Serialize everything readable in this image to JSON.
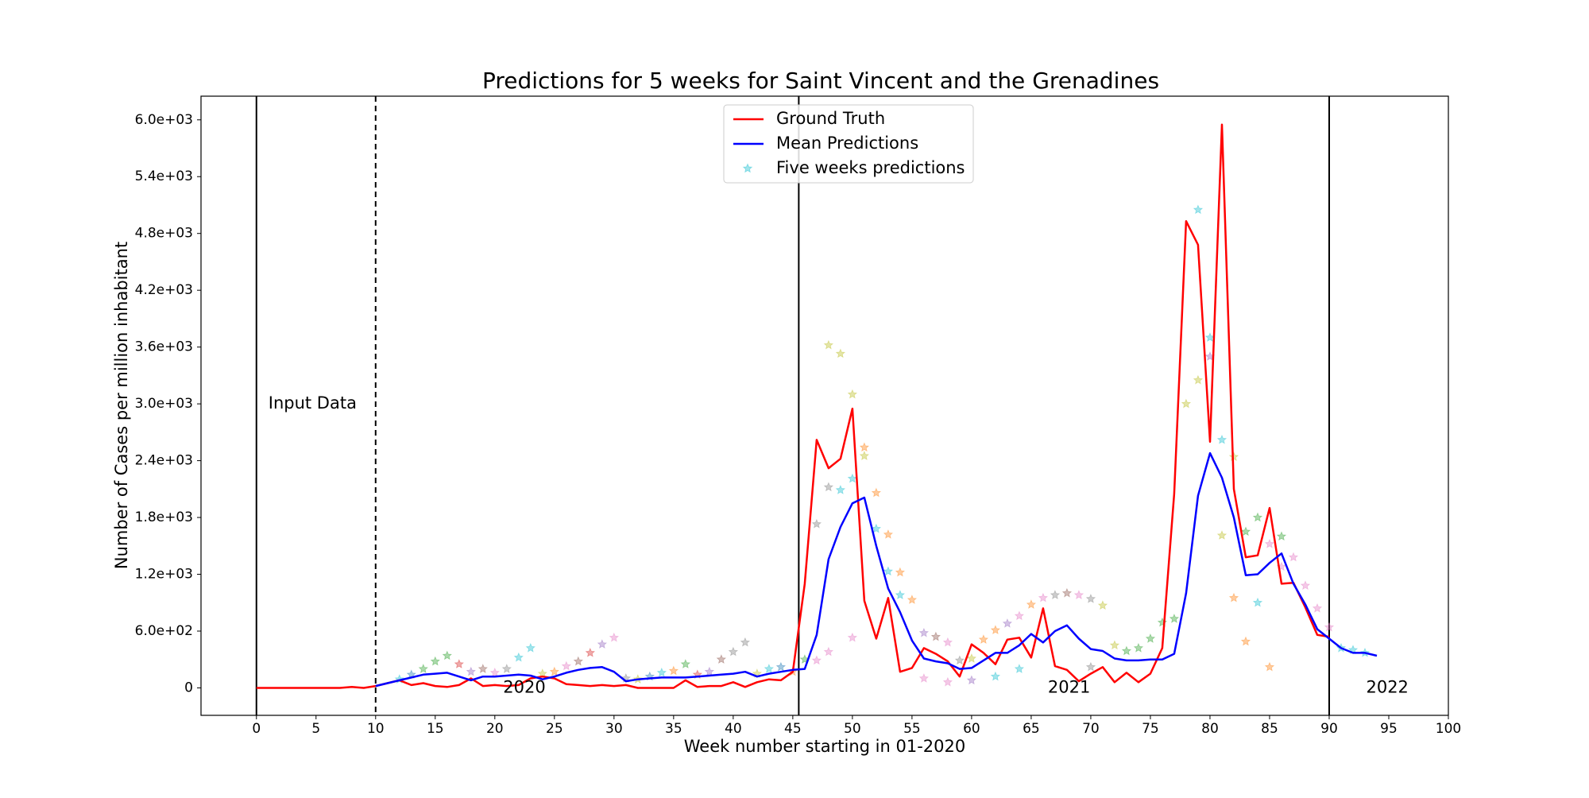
{
  "chart_data": {
    "type": "line",
    "title": "Predictions for 5 weeks for Saint Vincent and the Grenadines",
    "x_label": "Week number starting in 01-2020",
    "y_label": "Number of Cases per million inhabitant",
    "xlim": [
      -4.65,
      100
    ],
    "ylim": [
      -290,
      6250
    ],
    "xticks": [
      0,
      5,
      10,
      15,
      20,
      25,
      30,
      35,
      40,
      45,
      50,
      55,
      60,
      65,
      70,
      75,
      80,
      85,
      90,
      95,
      100
    ],
    "yticks": [
      0,
      {
        "value": 600,
        "label": "6.0e+02"
      },
      {
        "value": 1200,
        "label": "1.2e+03"
      },
      {
        "value": 1800,
        "label": "1.8e+03"
      },
      {
        "value": 2400,
        "label": "2.4e+03"
      },
      {
        "value": 3000,
        "label": "3.0e+03"
      },
      {
        "value": 3600,
        "label": "3.6e+03"
      },
      {
        "value": 4200,
        "label": "4.2e+03"
      },
      {
        "value": 4800,
        "label": "4.8e+03"
      },
      {
        "value": 5400,
        "label": "5.4e+03"
      },
      {
        "value": 6000,
        "label": "6.0e+03"
      }
    ],
    "grid": false,
    "legend": "upper center",
    "vlines": [
      {
        "x": 0,
        "style": "solid"
      },
      {
        "x": 10,
        "style": "dashed"
      },
      {
        "x": 45.5,
        "style": "solid"
      },
      {
        "x": 90,
        "style": "solid"
      }
    ],
    "annotations": [
      {
        "text": "Input Data",
        "x": 1,
        "y": 3000
      },
      {
        "text": "2020",
        "x": 20.7,
        "y": 0
      },
      {
        "text": "2021",
        "x": 66.4,
        "y": 0
      },
      {
        "text": "2022",
        "x": 93.1,
        "y": 0
      }
    ],
    "series": [
      {
        "name": "Ground Truth",
        "type": "line",
        "color": "#ff0000",
        "x": [
          0,
          1,
          2,
          3,
          4,
          5,
          6,
          7,
          8,
          9,
          10,
          11,
          12,
          13,
          14,
          15,
          16,
          17,
          18,
          19,
          20,
          21,
          22,
          23,
          24,
          25,
          26,
          27,
          28,
          29,
          30,
          31,
          32,
          33,
          34,
          35,
          36,
          37,
          38,
          39,
          40,
          41,
          42,
          43,
          44,
          45,
          46,
          47,
          48,
          49,
          50,
          51,
          52,
          53,
          54,
          55,
          56,
          57,
          58,
          59,
          60,
          61,
          62,
          63,
          64,
          65,
          66,
          67,
          68,
          69,
          70,
          71,
          72,
          73,
          74,
          75,
          76,
          77,
          78,
          79,
          80,
          81,
          82,
          83,
          84,
          85,
          86,
          87,
          88,
          89,
          90
        ],
        "values": [
          0,
          0,
          0,
          0,
          0,
          0,
          0,
          0,
          10,
          0,
          20,
          50,
          80,
          30,
          50,
          20,
          10,
          30,
          100,
          20,
          30,
          20,
          30,
          100,
          120,
          100,
          40,
          30,
          20,
          30,
          20,
          30,
          0,
          0,
          0,
          0,
          80,
          10,
          20,
          20,
          60,
          10,
          60,
          90,
          80,
          170,
          1100,
          2620,
          2320,
          2420,
          2950,
          920,
          520,
          950,
          170,
          210,
          420,
          360,
          280,
          120,
          460,
          370,
          250,
          510,
          530,
          320,
          840,
          230,
          190,
          70,
          150,
          220,
          60,
          160,
          60,
          150,
          420,
          2050,
          4930,
          4680,
          2600,
          5950,
          2100,
          1380,
          1400,
          1900,
          1100,
          1110,
          850,
          560,
          540
        ]
      },
      {
        "name": "Mean Predictions",
        "type": "line",
        "color": "#0000ff",
        "x": [
          10,
          11,
          12,
          13,
          14,
          15,
          16,
          17,
          18,
          19,
          20,
          21,
          22,
          23,
          24,
          25,
          26,
          27,
          28,
          29,
          30,
          31,
          32,
          33,
          34,
          35,
          36,
          37,
          38,
          39,
          40,
          41,
          42,
          43,
          44,
          45,
          46,
          47,
          48,
          49,
          50,
          51,
          52,
          53,
          54,
          55,
          56,
          57,
          58,
          59,
          60,
          61,
          62,
          63,
          64,
          65,
          66,
          67,
          68,
          69,
          70,
          71,
          72,
          73,
          74,
          75,
          76,
          77,
          78,
          79,
          80,
          81,
          82,
          83,
          84,
          85,
          86,
          87,
          88,
          89,
          90,
          91,
          92,
          93,
          94
        ],
        "values": [
          20,
          50,
          80,
          110,
          140,
          150,
          160,
          120,
          80,
          120,
          120,
          130,
          140,
          130,
          90,
          120,
          160,
          190,
          210,
          220,
          170,
          70,
          90,
          100,
          110,
          110,
          110,
          120,
          130,
          140,
          150,
          170,
          120,
          150,
          170,
          190,
          200,
          560,
          1360,
          1700,
          1950,
          2010,
          1500,
          1050,
          800,
          500,
          310,
          280,
          260,
          200,
          210,
          290,
          370,
          370,
          450,
          570,
          480,
          600,
          660,
          520,
          410,
          390,
          310,
          290,
          290,
          300,
          300,
          360,
          1000,
          2030,
          2480,
          2220,
          1800,
          1190,
          1200,
          1320,
          1420,
          1100,
          880,
          620,
          520,
          420,
          370,
          370,
          340
        ]
      },
      {
        "name": "Five weeks predictions",
        "type": "scatter",
        "color": "#17becf",
        "x": [
          12,
          13,
          14,
          15,
          16,
          17,
          18,
          19,
          20,
          21,
          22,
          23,
          24,
          25,
          26,
          27,
          28,
          29,
          30,
          31,
          32,
          33,
          34,
          35,
          36,
          37,
          38,
          39,
          40,
          41,
          42,
          43,
          44,
          45,
          46,
          47,
          48,
          48,
          49,
          49,
          50,
          50,
          51,
          51,
          52,
          52,
          53,
          53,
          54,
          54,
          55,
          56,
          57,
          58,
          59,
          60,
          61,
          62,
          63,
          64,
          65,
          66,
          67,
          68,
          69,
          70,
          71,
          72,
          73,
          74,
          75,
          76,
          77,
          78,
          79,
          79,
          80,
          80,
          81,
          81,
          82,
          82,
          83,
          83,
          84,
          84,
          85,
          85,
          86,
          86,
          87,
          88,
          89,
          90,
          91,
          92,
          93,
          47,
          48,
          50,
          56,
          58,
          60,
          62,
          64,
          70
        ],
        "values": [
          90,
          140,
          200,
          280,
          340,
          250,
          170,
          200,
          160,
          200,
          320,
          420,
          150,
          170,
          230,
          280,
          370,
          460,
          530,
          100,
          90,
          120,
          160,
          180,
          250,
          140,
          170,
          300,
          380,
          480,
          150,
          200,
          220,
          170,
          300,
          1730,
          2120,
          3620,
          3530,
          2090,
          3100,
          2210,
          2540,
          2450,
          2060,
          1680,
          1620,
          1230,
          1220,
          980,
          930,
          580,
          540,
          480,
          290,
          310,
          510,
          610,
          680,
          760,
          880,
          950,
          980,
          1000,
          980,
          940,
          870,
          450,
          390,
          420,
          520,
          690,
          730,
          3000,
          5050,
          3250,
          3700,
          3500,
          2620,
          1610,
          2440,
          950,
          1650,
          490,
          1800,
          900,
          1520,
          220,
          1600,
          1280,
          1380,
          1080,
          840,
          640,
          420,
          400,
          370,
          290,
          380,
          530,
          100,
          60,
          80,
          120,
          200,
          220
        ],
        "colors": [
          "#17becf",
          "#1f77b4",
          "#2ca02c",
          "#2ca02c",
          "#2ca02c",
          "#d62728",
          "#9467bd",
          "#8c564b",
          "#e377c2",
          "#7f7f7f",
          "#17becf",
          "#17becf",
          "#bcbd22",
          "#ff7f0e",
          "#e377c2",
          "#8c564b",
          "#d62728",
          "#9467bd",
          "#e377c2",
          "#7f7f7f",
          "#bcbd22",
          "#1f77b4",
          "#17becf",
          "#ff7f0e",
          "#2ca02c",
          "#d62728",
          "#9467bd",
          "#8c564b",
          "#7f7f7f",
          "#7f7f7f",
          "#bcbd22",
          "#17becf",
          "#1f77b4",
          "#ff7f0e",
          "#2ca02c",
          "#7f7f7f",
          "#7f7f7f",
          "#bcbd22",
          "#bcbd22",
          "#17becf",
          "#bcbd22",
          "#17becf",
          "#ff7f0e",
          "#bcbd22",
          "#ff7f0e",
          "#17becf",
          "#ff7f0e",
          "#17becf",
          "#ff7f0e",
          "#17becf",
          "#ff7f0e",
          "#9467bd",
          "#8c564b",
          "#e377c2",
          "#7f7f7f",
          "#bcbd22",
          "#ff7f0e",
          "#ff7f0e",
          "#9467bd",
          "#e377c2",
          "#ff7f0e",
          "#e377c2",
          "#7f7f7f",
          "#8c564b",
          "#e377c2",
          "#7f7f7f",
          "#bcbd22",
          "#bcbd22",
          "#2ca02c",
          "#2ca02c",
          "#2ca02c",
          "#2ca02c",
          "#2ca02c",
          "#bcbd22",
          "#17becf",
          "#bcbd22",
          "#17becf",
          "#9467bd",
          "#17becf",
          "#bcbd22",
          "#bcbd22",
          "#ff7f0e",
          "#2ca02c",
          "#ff7f0e",
          "#2ca02c",
          "#17becf",
          "#e377c2",
          "#ff7f0e",
          "#2ca02c",
          "#e377c2",
          "#e377c2",
          "#e377c2",
          "#e377c2",
          "#e377c2",
          "#17becf",
          "#17becf",
          "#17becf",
          "#e377c2",
          "#e377c2",
          "#e377c2",
          "#e377c2",
          "#e377c2",
          "#9467bd",
          "#17becf",
          "#17becf",
          "#7f7f7f"
        ]
      }
    ]
  }
}
